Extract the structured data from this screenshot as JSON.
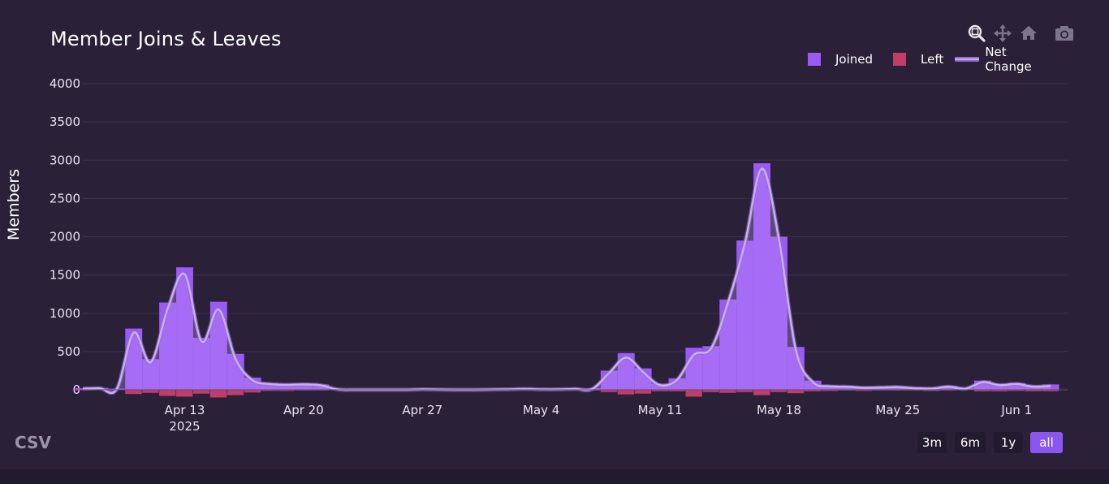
{
  "title": "Member Joins & Leaves",
  "modebar": [
    "zoom-icon",
    "pan-icon",
    "home-icon",
    "camera-icon"
  ],
  "legend": {
    "joined": "Joined",
    "left": "Left",
    "net": "Net Change"
  },
  "y_axis_title": "Members",
  "csv_label": "CSV",
  "range_buttons": {
    "b3m": "3m",
    "b6m": "6m",
    "b1y": "1y",
    "ball": "all"
  },
  "active_range": "all",
  "colors": {
    "joined": "#9b59f5",
    "left": "#c03d67",
    "net": "#c9aef2",
    "background": "#2a2139",
    "grid": "#3a3147"
  },
  "chart_data": {
    "type": "bar",
    "title": "Member Joins & Leaves",
    "ylabel": "Members",
    "xlabel": "",
    "ylim": [
      -80,
      4000
    ],
    "yticks": [
      0,
      500,
      1000,
      1500,
      2000,
      2500,
      3000,
      3500,
      4000
    ],
    "x_start": "2025-04-07",
    "x_end": "2025-06-04",
    "x_ticks": [
      {
        "date": "2025-04-13",
        "label": "Apr 13",
        "sublabel": "2025"
      },
      {
        "date": "2025-04-20",
        "label": "Apr 20",
        "sublabel": ""
      },
      {
        "date": "2025-04-27",
        "label": "Apr 27",
        "sublabel": ""
      },
      {
        "date": "2025-05-04",
        "label": "May 4",
        "sublabel": ""
      },
      {
        "date": "2025-05-11",
        "label": "May 11",
        "sublabel": ""
      },
      {
        "date": "2025-05-18",
        "label": "May 18",
        "sublabel": ""
      },
      {
        "date": "2025-05-25",
        "label": "May 25",
        "sublabel": ""
      },
      {
        "date": "2025-06-01",
        "label": "Jun 1",
        "sublabel": ""
      }
    ],
    "x": [
      "2025-04-07",
      "2025-04-08",
      "2025-04-09",
      "2025-04-10",
      "2025-04-11",
      "2025-04-12",
      "2025-04-13",
      "2025-04-14",
      "2025-04-15",
      "2025-04-16",
      "2025-04-17",
      "2025-04-18",
      "2025-04-19",
      "2025-04-20",
      "2025-04-21",
      "2025-04-22",
      "2025-04-23",
      "2025-04-24",
      "2025-04-25",
      "2025-04-26",
      "2025-04-27",
      "2025-04-28",
      "2025-04-29",
      "2025-04-30",
      "2025-05-01",
      "2025-05-02",
      "2025-05-03",
      "2025-05-04",
      "2025-05-05",
      "2025-05-06",
      "2025-05-07",
      "2025-05-08",
      "2025-05-09",
      "2025-05-10",
      "2025-05-11",
      "2025-05-12",
      "2025-05-13",
      "2025-05-14",
      "2025-05-15",
      "2025-05-16",
      "2025-05-17",
      "2025-05-18",
      "2025-05-19",
      "2025-05-20",
      "2025-05-21",
      "2025-05-22",
      "2025-05-23",
      "2025-05-24",
      "2025-05-25",
      "2025-05-26",
      "2025-05-27",
      "2025-05-28",
      "2025-05-29",
      "2025-05-30",
      "2025-05-31",
      "2025-06-01",
      "2025-06-02",
      "2025-06-03"
    ],
    "series": [
      {
        "name": "Joined",
        "values": [
          20,
          25,
          15,
          800,
          400,
          1140,
          1600,
          680,
          1150,
          470,
          160,
          90,
          80,
          80,
          70,
          10,
          5,
          5,
          5,
          5,
          10,
          8,
          5,
          5,
          8,
          10,
          15,
          10,
          10,
          15,
          20,
          250,
          480,
          280,
          80,
          150,
          550,
          570,
          1180,
          1950,
          2960,
          2000,
          560,
          120,
          60,
          50,
          40,
          40,
          45,
          30,
          30,
          50,
          20,
          120,
          80,
          90,
          60,
          70
        ]
      },
      {
        "name": "Left",
        "values": [
          -5,
          -5,
          -5,
          -55,
          -40,
          -80,
          -90,
          -50,
          -100,
          -70,
          -35,
          -15,
          -15,
          -10,
          -10,
          -5,
          -5,
          -5,
          -5,
          -5,
          -5,
          -5,
          -5,
          -5,
          -5,
          -5,
          -5,
          -5,
          -5,
          -5,
          -10,
          -30,
          -60,
          -50,
          -20,
          -20,
          -90,
          -30,
          -40,
          -30,
          -70,
          -30,
          -45,
          -20,
          -15,
          -10,
          -15,
          -10,
          -10,
          -10,
          -15,
          -10,
          -5,
          -20,
          -20,
          -15,
          -20,
          -20
        ]
      },
      {
        "name": "Net Change",
        "values": [
          15,
          20,
          10,
          745,
          360,
          1060,
          1510,
          630,
          1050,
          400,
          125,
          75,
          65,
          70,
          60,
          5,
          0,
          0,
          0,
          0,
          5,
          3,
          0,
          0,
          3,
          5,
          10,
          5,
          5,
          10,
          10,
          220,
          420,
          230,
          60,
          130,
          460,
          540,
          1140,
          1920,
          2890,
          1970,
          515,
          100,
          45,
          40,
          25,
          30,
          35,
          20,
          15,
          40,
          15,
          100,
          60,
          75,
          40,
          50
        ]
      }
    ]
  }
}
